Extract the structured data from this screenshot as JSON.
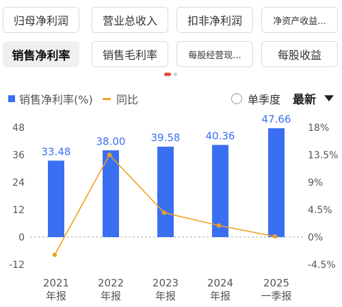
{
  "tabs": [
    {
      "label": "归母净利润",
      "active": false
    },
    {
      "label": "营业总收入",
      "active": false
    },
    {
      "label": "扣非净利润",
      "active": false
    },
    {
      "label": "净资产收益...",
      "active": false
    },
    {
      "label": "销售净利率",
      "active": true
    },
    {
      "label": "销售毛利率",
      "active": false
    },
    {
      "label": "每股经营现...",
      "active": false
    },
    {
      "label": "每股收益",
      "active": false
    }
  ],
  "legend": {
    "bar_series": "销售净利率(%)",
    "line_series": "同比",
    "quarter_toggle": "单季度",
    "sort_label": "最新"
  },
  "colors": {
    "bar": "#3b6ff2",
    "line": "#f0a020",
    "active_dot": "#e8483f"
  },
  "chart_data": {
    "type": "bar",
    "categories": [
      "2021\n年报",
      "2022\n年报",
      "2023\n年报",
      "2024\n年报",
      "2025\n一季报"
    ],
    "category_lines": [
      [
        "2021",
        "年报"
      ],
      [
        "2022",
        "年报"
      ],
      [
        "2023",
        "年报"
      ],
      [
        "2024",
        "年报"
      ],
      [
        "2025",
        "一季报"
      ]
    ],
    "series": [
      {
        "name": "销售净利率(%)",
        "type": "bar",
        "axis": "left",
        "values": [
          33.48,
          38.0,
          39.58,
          40.36,
          47.66
        ]
      },
      {
        "name": "同比",
        "type": "line",
        "axis": "right",
        "values": [
          -2.9,
          13.5,
          4.0,
          1.9,
          0.1
        ]
      }
    ],
    "data_labels": [
      "33.48",
      "38.00",
      "39.58",
      "40.36",
      "47.66"
    ],
    "left_axis": {
      "ticks": [
        48,
        36,
        24,
        12,
        0,
        -12
      ],
      "tick_labels": [
        "48",
        "36",
        "24",
        "12",
        "0",
        "-12"
      ],
      "range": [
        -12,
        48
      ]
    },
    "right_axis": {
      "ticks": [
        18,
        13.5,
        9,
        4.5,
        0,
        -4.5
      ],
      "tick_labels": [
        "18%",
        "13.5%",
        "9%",
        "4.5%",
        "0%",
        "-4.5%"
      ],
      "range": [
        -4.5,
        18
      ]
    },
    "grid": false,
    "zero_line": "dashed"
  }
}
